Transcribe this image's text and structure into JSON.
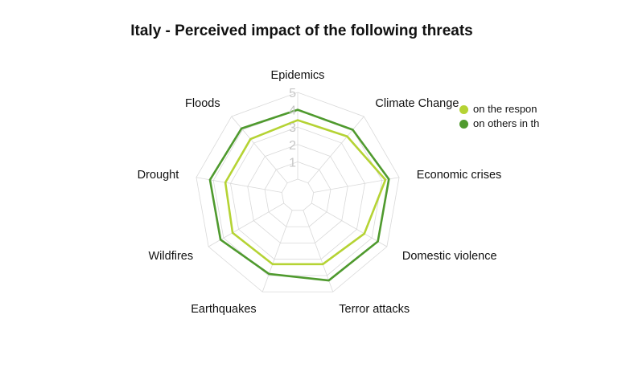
{
  "chart_data": {
    "type": "radar",
    "title": "Italy - Perceived impact of the following threats",
    "axes": [
      "Epidemics",
      "Climate Change",
      "Economic crises",
      "Domestic violence",
      "Terror attacks",
      "Earthquakes",
      "Wildfires",
      "Drought",
      "Floods"
    ],
    "r_ticks": [
      "1",
      "2",
      "3",
      "4",
      "5"
    ],
    "rlim": [
      0,
      5
    ],
    "series": [
      {
        "name": "on the respon",
        "color": "#b5d334",
        "values": [
          3.4,
          3.5,
          4.2,
          3.5,
          3.3,
          3.3,
          3.4,
          3.3,
          3.3
        ]
      },
      {
        "name": "on others in th",
        "color": "#4f9a2e",
        "values": [
          4.0,
          4.0,
          4.4,
          4.4,
          4.3,
          3.9,
          4.2,
          4.2,
          4.1
        ]
      }
    ],
    "legend_position": "top-right",
    "grid": true
  }
}
